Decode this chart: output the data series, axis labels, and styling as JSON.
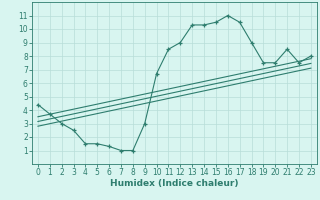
{
  "main_x": [
    0,
    1,
    2,
    3,
    4,
    5,
    6,
    7,
    8,
    9,
    10,
    11,
    12,
    13,
    14,
    15,
    16,
    17,
    18,
    19,
    20,
    21,
    22,
    23
  ],
  "main_y": [
    4.4,
    3.7,
    3.0,
    2.5,
    1.5,
    1.5,
    1.3,
    1.0,
    1.0,
    3.0,
    6.7,
    8.5,
    9.0,
    10.3,
    10.3,
    10.5,
    11.0,
    10.5,
    9.0,
    7.5,
    7.5,
    8.5,
    7.5,
    8.0
  ],
  "line1_x": [
    0,
    23
  ],
  "line1_y": [
    3.5,
    7.8
  ],
  "line2_x": [
    0,
    23
  ],
  "line2_y": [
    2.8,
    7.1
  ],
  "line3_x": [
    0,
    23
  ],
  "line3_y": [
    3.15,
    7.45
  ],
  "color": "#2e7d6e",
  "bg_color": "#d8f5f0",
  "grid_color": "#b8ddd8",
  "xlabel": "Humidex (Indice chaleur)",
  "xlim": [
    -0.5,
    23.5
  ],
  "ylim": [
    0.0,
    12.0
  ],
  "xticks": [
    0,
    1,
    2,
    3,
    4,
    5,
    6,
    7,
    8,
    9,
    10,
    11,
    12,
    13,
    14,
    15,
    16,
    17,
    18,
    19,
    20,
    21,
    22,
    23
  ],
  "yticks": [
    1,
    2,
    3,
    4,
    5,
    6,
    7,
    8,
    9,
    10,
    11
  ],
  "label_fontsize": 6.5,
  "tick_fontsize": 5.5
}
